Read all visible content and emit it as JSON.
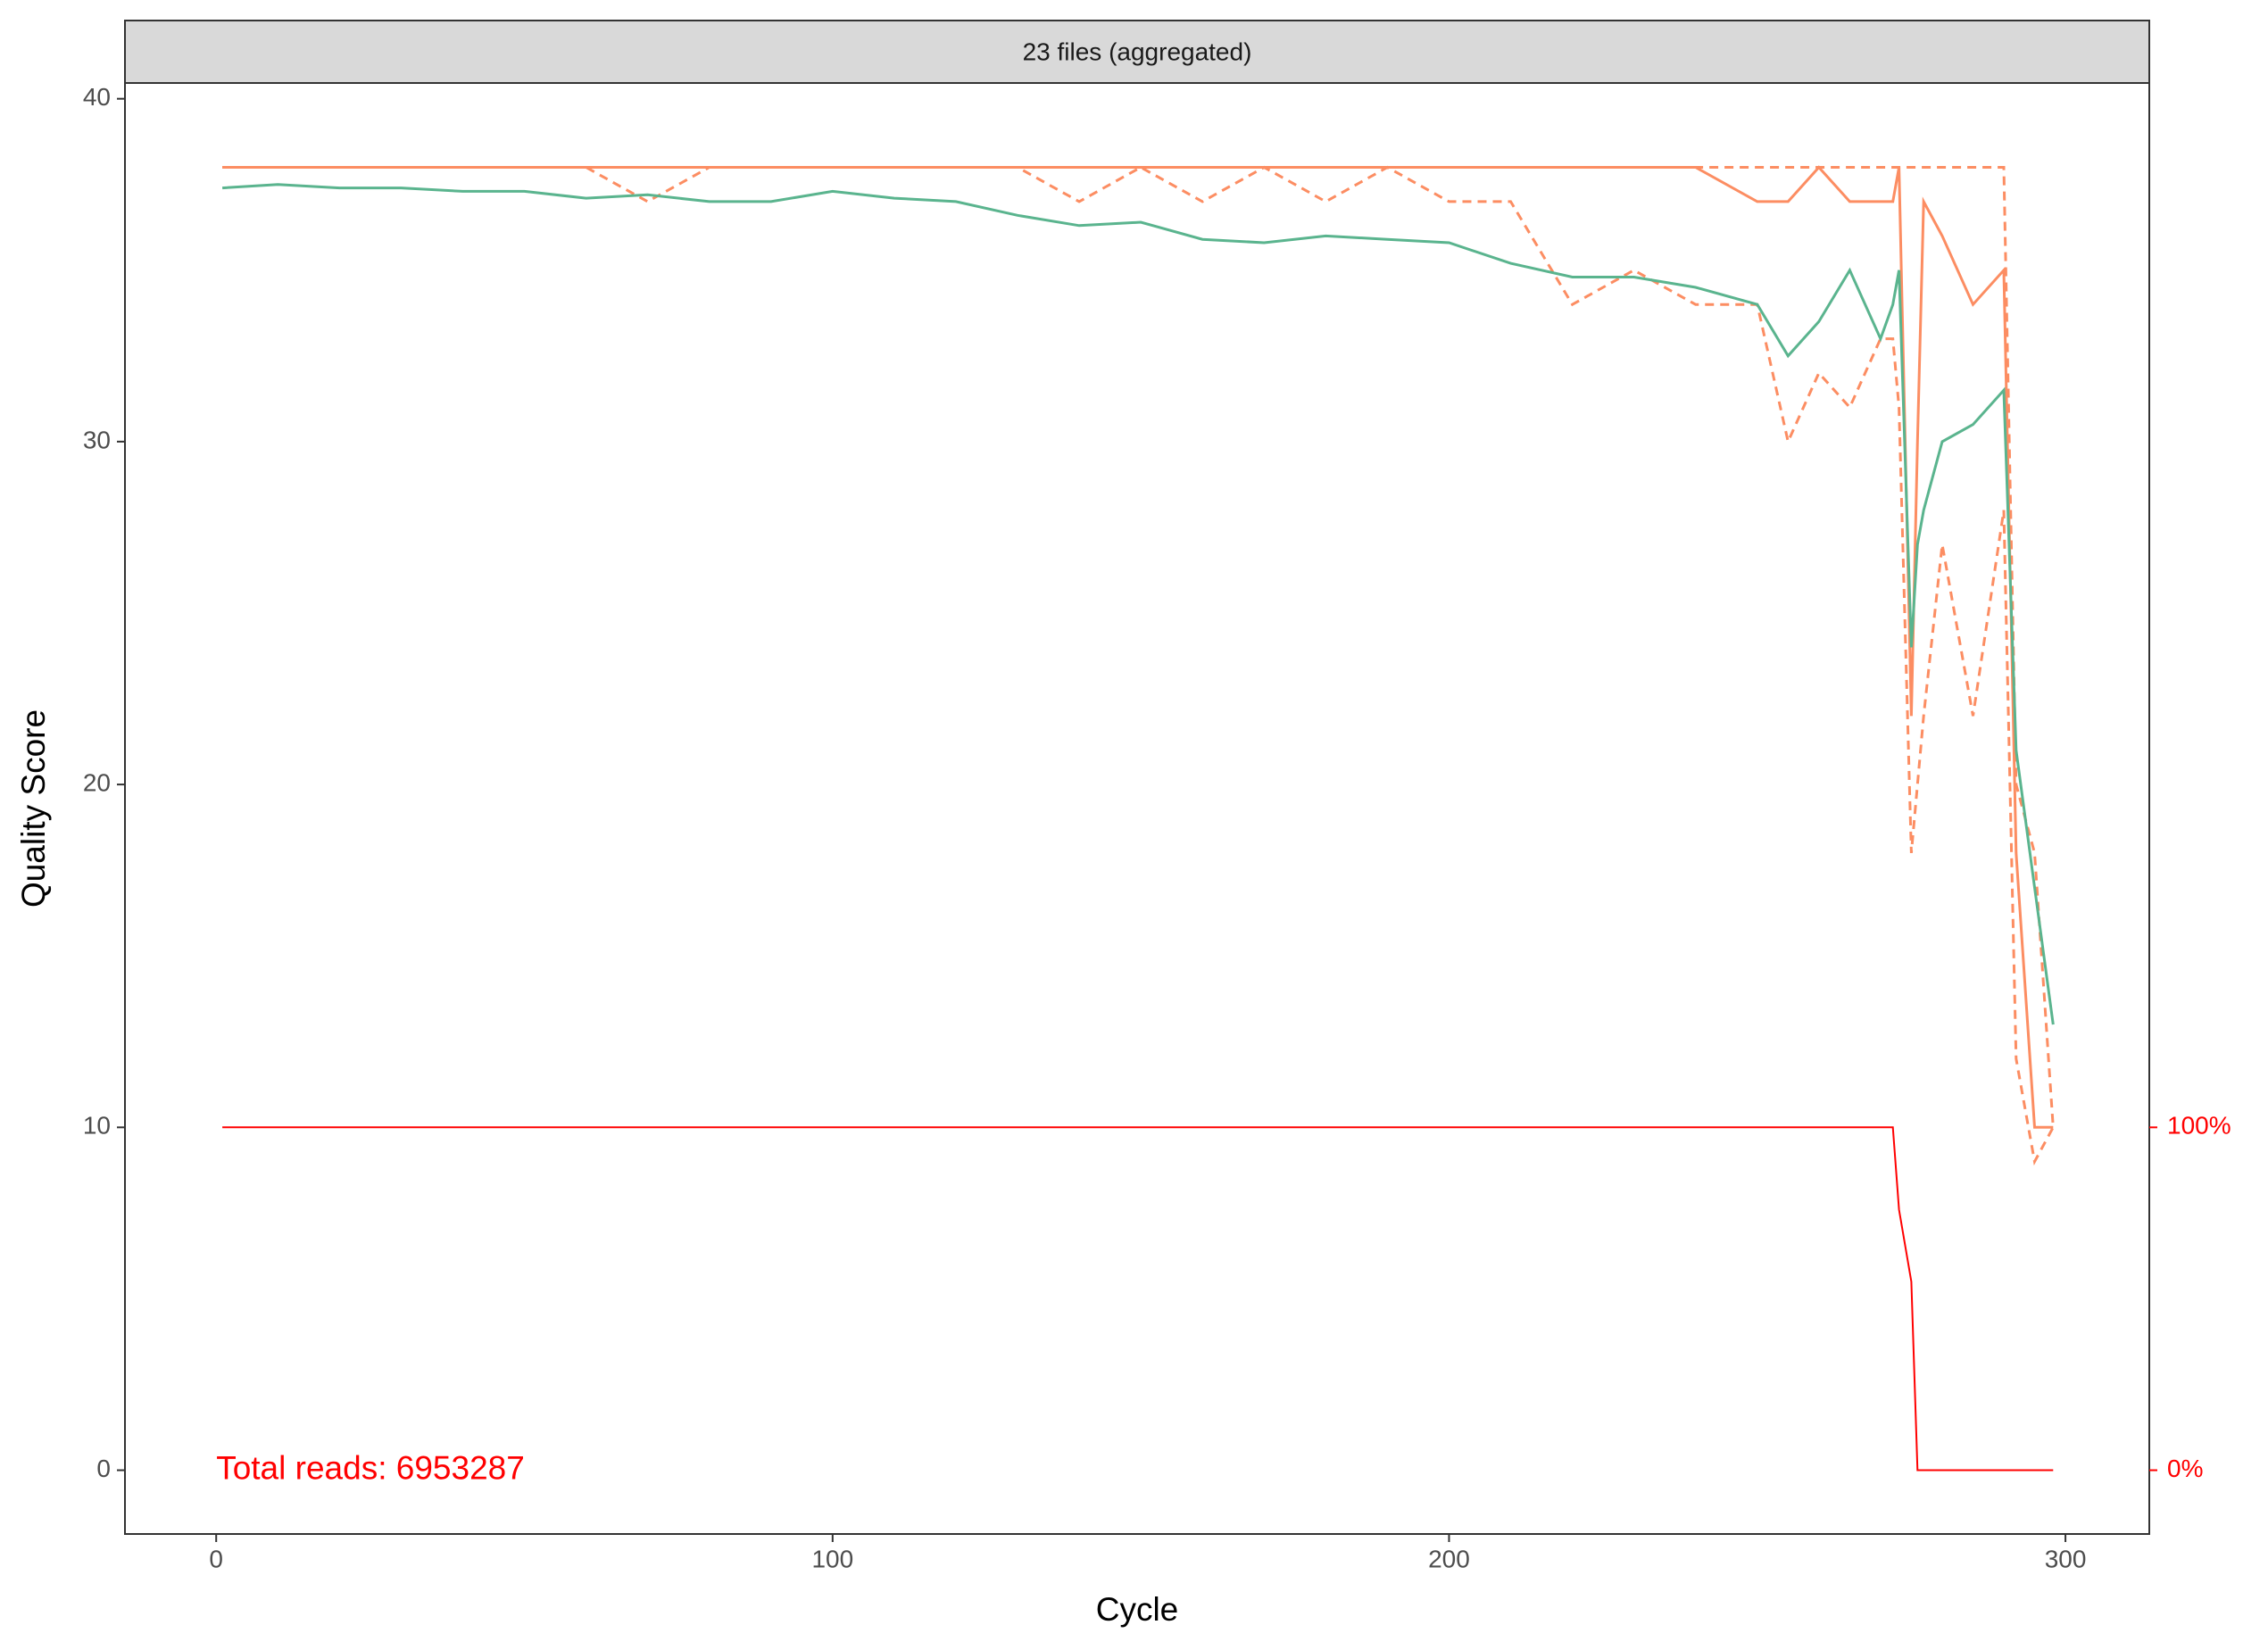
{
  "chart_data": {
    "type": "line",
    "strip_title": "23 files (aggregated)",
    "xlabel": "Cycle",
    "ylabel": "Quality Score",
    "annotation": "Total reads: 6953287",
    "x": [
      1,
      10,
      20,
      30,
      40,
      50,
      60,
      70,
      80,
      90,
      100,
      110,
      120,
      130,
      140,
      150,
      160,
      170,
      180,
      190,
      200,
      210,
      220,
      230,
      240,
      250,
      255,
      260,
      265,
      270,
      272,
      273,
      275,
      276,
      277,
      280,
      285,
      290,
      292,
      295,
      298
    ],
    "series": [
      {
        "color": "#fc8d62",
        "linestyle": "dashed",
        "values": [
          38,
          38,
          38,
          38,
          38,
          38,
          38,
          37,
          38,
          38,
          38,
          38,
          38,
          38,
          37,
          38,
          37,
          38,
          37,
          38,
          37,
          37,
          34,
          35,
          34,
          34,
          30,
          32,
          31,
          33,
          33,
          31,
          18,
          20,
          22,
          27,
          22,
          28,
          12,
          9,
          10
        ]
      },
      {
        "color": "#fc8d62",
        "linestyle": "dashed",
        "values": [
          38,
          38,
          38,
          38,
          38,
          38,
          38,
          38,
          38,
          38,
          38,
          38,
          38,
          38,
          38,
          38,
          38,
          38,
          38,
          38,
          38,
          38,
          38,
          38,
          38,
          38,
          38,
          38,
          38,
          38,
          38,
          38,
          38,
          38,
          38,
          38,
          38,
          38,
          20,
          18,
          10
        ]
      },
      {
        "color": "#fc8d62",
        "linestyle": "solid",
        "values": [
          38,
          38,
          38,
          38,
          38,
          38,
          38,
          38,
          38,
          38,
          38,
          38,
          38,
          38,
          38,
          38,
          38,
          38,
          38,
          38,
          38,
          38,
          38,
          38,
          38,
          37,
          37,
          38,
          37,
          37,
          37,
          38,
          22,
          30,
          37,
          36,
          34,
          35,
          18,
          10,
          10
        ]
      },
      {
        "color": "#5ab48e",
        "linestyle": "solid",
        "values": [
          37.4,
          37.5,
          37.4,
          37.4,
          37.3,
          37.3,
          37.1,
          37.2,
          37.0,
          37.0,
          37.3,
          37.1,
          37.0,
          36.6,
          36.3,
          36.4,
          35.9,
          35.8,
          36.0,
          35.9,
          35.8,
          35.2,
          34.8,
          34.8,
          34.5,
          34.0,
          32.5,
          33.5,
          35.0,
          33.0,
          34.0,
          35.0,
          24.0,
          27.0,
          28.0,
          30.0,
          30.5,
          31.5,
          21.0,
          17.0,
          13.0
        ]
      },
      {
        "color": "#ff0000",
        "linestyle": "solid",
        "axis": "y2",
        "values": [
          100,
          100,
          100,
          100,
          100,
          100,
          100,
          100,
          100,
          100,
          100,
          100,
          100,
          100,
          100,
          100,
          100,
          100,
          100,
          100,
          100,
          100,
          100,
          100,
          100,
          100,
          100,
          100,
          100,
          100,
          100,
          76,
          55,
          0,
          0,
          0,
          0,
          0,
          0,
          0,
          0
        ]
      }
    ],
    "xlim": [
      -14.8,
      313.6
    ],
    "xticks": [
      0,
      100,
      200,
      300
    ],
    "ylim": [
      -1.86,
      40.46
    ],
    "yticks": [
      0,
      10,
      20,
      30,
      40
    ],
    "y2lim": [
      -18.6,
      404.6
    ],
    "y2ticks": [
      {
        "value": 0,
        "label": "0%"
      },
      {
        "value": 100,
        "label": "100%"
      }
    ],
    "y2color": "#ff0000",
    "annotation_color": "#ff0000"
  }
}
